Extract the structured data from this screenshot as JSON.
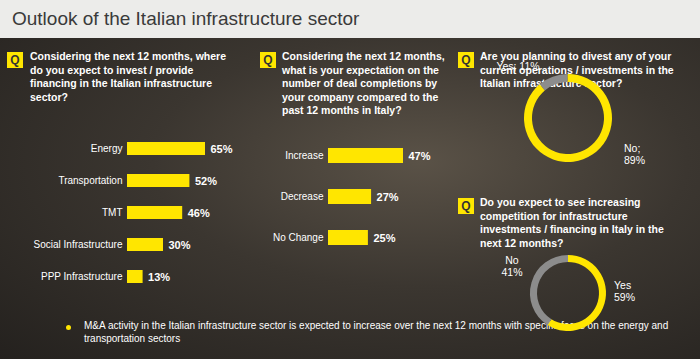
{
  "title": "Outlook of the Italian infrastructure sector",
  "question_label": "Q",
  "footnote": "M&A activity in the Italian infrastructure sector is expected to increase over the next 12 months with specific focus on the energy and transportation sectors",
  "chart_data": [
    {
      "type": "bar",
      "orientation": "horizontal",
      "title": "Considering the next 12 months, where do you expect to invest / provide financing in the Italian infrastructure sector?",
      "categories": [
        "Energy",
        "Transportation",
        "TMT",
        "Social Infrastructure",
        "PPP Infrastructure"
      ],
      "values": [
        65,
        52,
        46,
        30,
        13
      ],
      "value_labels": [
        "65%",
        "52%",
        "46%",
        "30%",
        "13%"
      ],
      "data_labels": true,
      "tick_labels": "y",
      "color": "#ffe600"
    },
    {
      "type": "bar",
      "orientation": "horizontal",
      "title": "Considering the next 12 months, what is your expectation on the number of deal completions by your company compared to the past 12 months in Italy?",
      "categories": [
        "Increase",
        "Decrease",
        "No Change"
      ],
      "values": [
        47,
        27,
        25
      ],
      "value_labels": [
        "47%",
        "27%",
        "25%"
      ],
      "data_labels": true,
      "tick_labels": "y",
      "color": "#ffe600"
    },
    {
      "type": "pie",
      "title": "Are you planning to divest any of your current operations / investments in the Italian infrastructure sector?",
      "categories": [
        "Yes",
        "No"
      ],
      "values": [
        11,
        89
      ],
      "value_labels": [
        "Yes; 11%",
        "No;\n89%"
      ],
      "data_labels": true,
      "colors": [
        "#8c8c8c",
        "#ffe600"
      ]
    },
    {
      "type": "pie",
      "title": "Do you expect to see increasing competition for infrastructure investments / financing in Italy in the next 12 months?",
      "categories": [
        "Yes",
        "No"
      ],
      "values": [
        59,
        41
      ],
      "value_labels": [
        "Yes\n59%",
        "No\n41%"
      ],
      "data_labels": true,
      "colors": [
        "#ffe600",
        "#8c8c8c"
      ]
    }
  ]
}
